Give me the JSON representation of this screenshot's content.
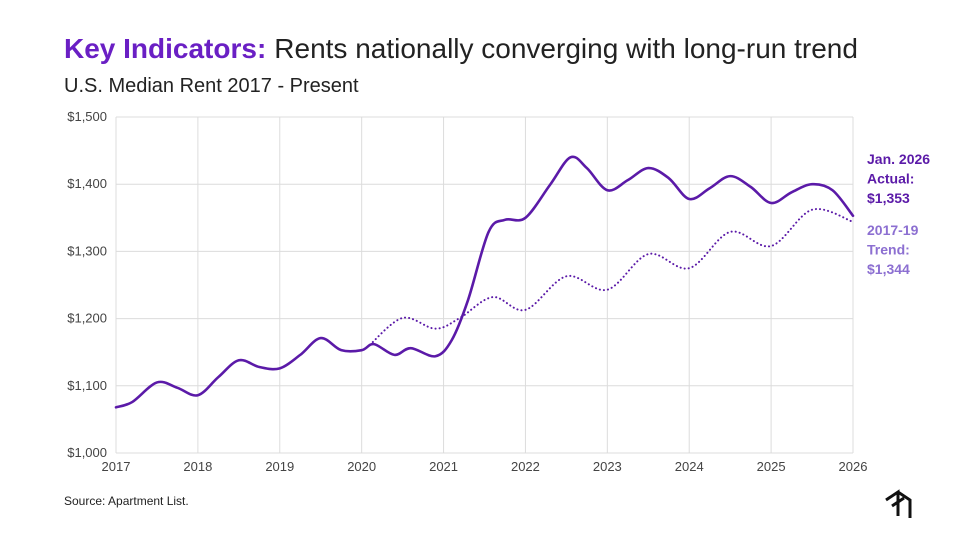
{
  "chart_data": {
    "type": "line",
    "title_highlight": "Key Indicators:",
    "title": "Rents nationally converging with long-run trend",
    "subtitle": "U.S. Median Rent 2017 - Present",
    "source": "Source: Apartment List.",
    "series": [
      {
        "name": "Actual",
        "color": "#5b1aa8",
        "style": "solid",
        "x": [
          2017.0,
          2017.2,
          2017.5,
          2017.75,
          2018.0,
          2018.25,
          2018.5,
          2018.75,
          2019.0,
          2019.25,
          2019.5,
          2019.75,
          2020.0,
          2020.15,
          2020.4,
          2020.6,
          2020.9,
          2021.1,
          2021.3,
          2021.55,
          2021.75,
          2022.0,
          2022.3,
          2022.55,
          2022.75,
          2023.0,
          2023.25,
          2023.5,
          2023.75,
          2024.0,
          2024.25,
          2024.5,
          2024.75,
          2025.0,
          2025.25,
          2025.5,
          2025.75,
          2026.0
        ],
        "values": [
          1068,
          1076,
          1105,
          1097,
          1086,
          1113,
          1138,
          1128,
          1126,
          1146,
          1171,
          1153,
          1153,
          1162,
          1146,
          1156,
          1144,
          1168,
          1228,
          1329,
          1347,
          1350,
          1399,
          1440,
          1424,
          1391,
          1406,
          1424,
          1409,
          1378,
          1394,
          1412,
          1396,
          1372,
          1388,
          1400,
          1391,
          1353
        ]
      },
      {
        "name": "2017-19 Trend",
        "color": "#5b1aa8",
        "style": "dotted",
        "x": [
          2020.1,
          2020.5,
          2020.9,
          2021.2,
          2021.6,
          2022.0,
          2022.5,
          2023.0,
          2023.5,
          2024.0,
          2024.5,
          2025.0,
          2025.5,
          2026.0
        ],
        "values": [
          1161,
          1201,
          1185,
          1201,
          1232,
          1213,
          1263,
          1243,
          1296,
          1275,
          1329,
          1308,
          1362,
          1344
        ]
      }
    ],
    "annotations": [
      {
        "lines": [
          "Jan. 2026",
          "Actual:",
          "$1,353"
        ],
        "color": "#5b1aa8"
      },
      {
        "lines": [
          "2017-19",
          "Trend:",
          "$1,344"
        ],
        "color": "#8c6fd1"
      }
    ],
    "xlim": [
      2017,
      2026
    ],
    "xticks": [
      2017,
      2018,
      2019,
      2020,
      2021,
      2022,
      2023,
      2024,
      2025,
      2026
    ],
    "ylim": [
      1000,
      1500
    ],
    "yticks": [
      {
        "value": 1000,
        "label": "$1,000"
      },
      {
        "value": 1100,
        "label": "$1,100"
      },
      {
        "value": 1200,
        "label": "$1,200"
      },
      {
        "value": 1300,
        "label": "$1,300"
      },
      {
        "value": 1400,
        "label": "$1,400"
      },
      {
        "value": 1500,
        "label": "$1,500"
      }
    ],
    "grid": true
  }
}
